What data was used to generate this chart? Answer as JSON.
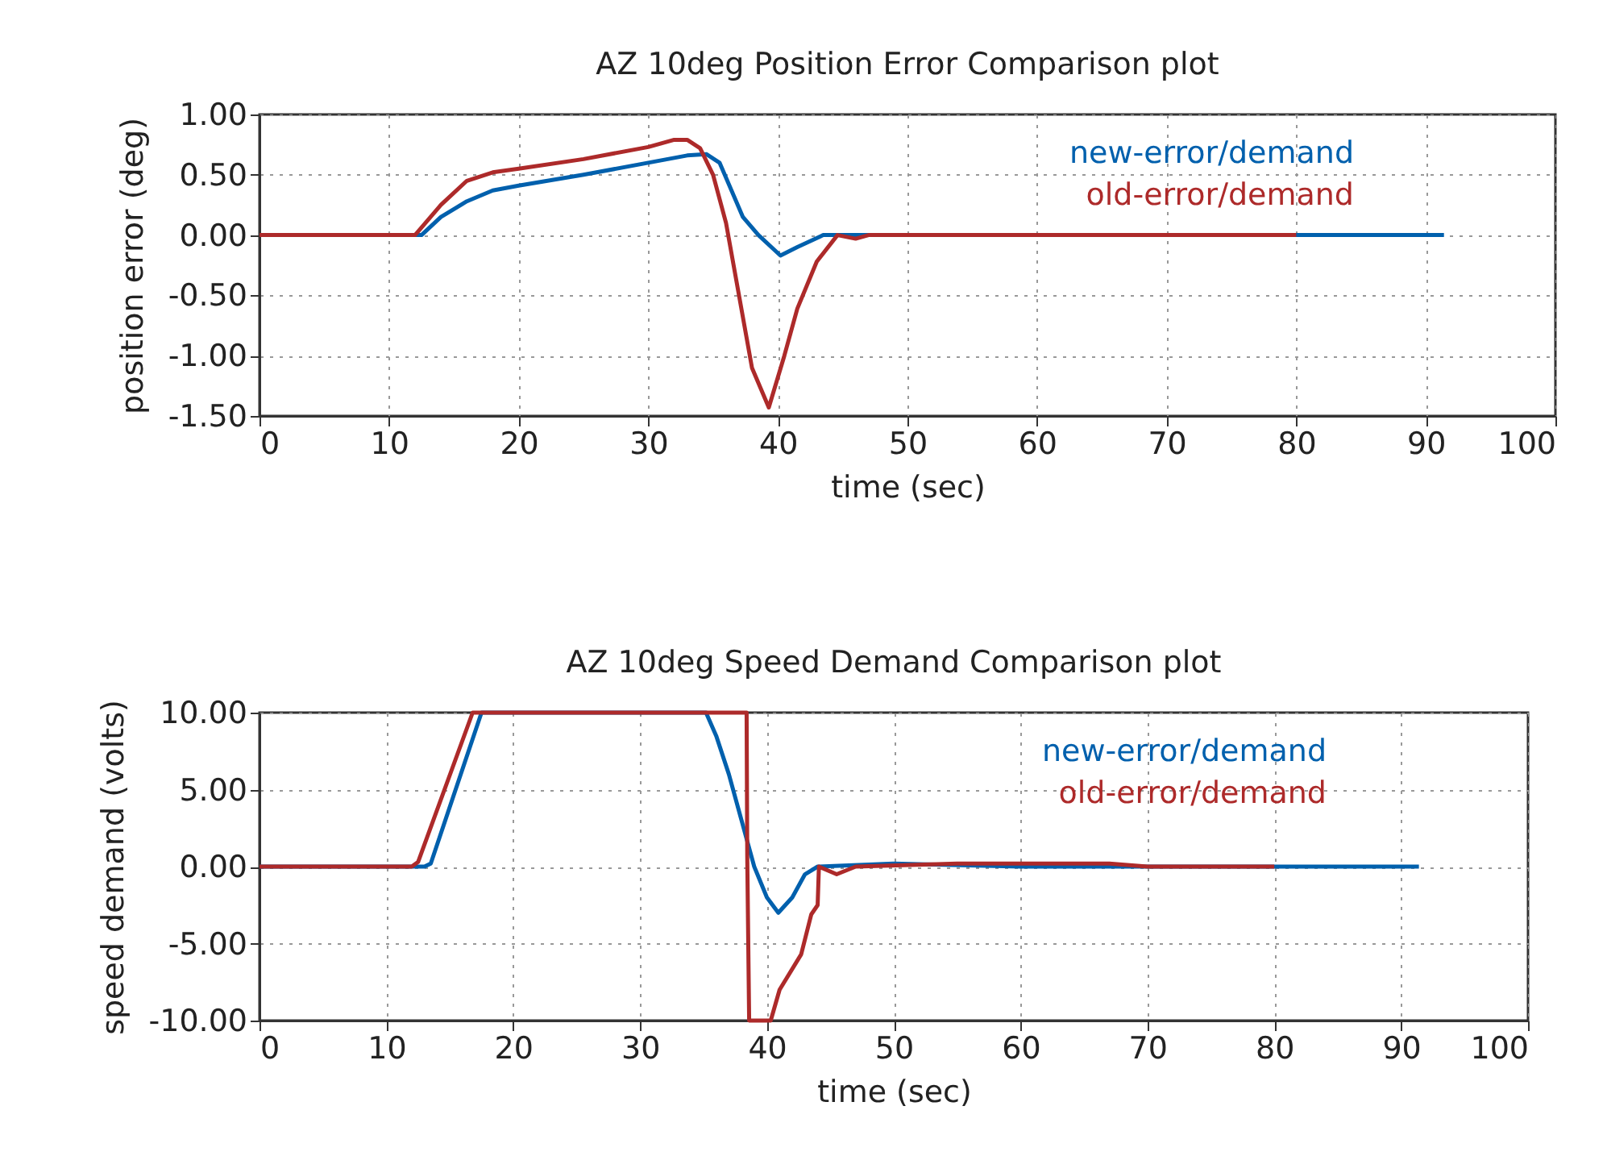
{
  "chart_data": [
    {
      "type": "line",
      "title": "AZ 10deg Position Error Comparison plot",
      "xlabel": "time (sec)",
      "ylabel": "position error (deg)",
      "xlim": [
        0,
        100
      ],
      "xticks": [
        0,
        10,
        20,
        30,
        40,
        50,
        60,
        70,
        80,
        90,
        100
      ],
      "ylim": [
        -1.5,
        1.0
      ],
      "yticks": [
        {
          "value": -1.5,
          "label": "-1.50"
        },
        {
          "value": -1.0,
          "label": "-1.00"
        },
        {
          "value": -0.5,
          "label": "-0.50"
        },
        {
          "value": 0,
          "label": "0.00"
        },
        {
          "value": 0.5,
          "label": "0.50"
        },
        {
          "value": 1.0,
          "label": "1.00"
        }
      ],
      "grid": true,
      "legend": "top right",
      "line_style": "solid",
      "marker": "none",
      "series": [
        {
          "name": "new-error/demand",
          "color": "#0060ad",
          "x": [
            0,
            12.5,
            14,
            16,
            18,
            20,
            25,
            30,
            33,
            34.5,
            35.5,
            37.3,
            38.5,
            40.2,
            41.5,
            43.5,
            50,
            60,
            70,
            80,
            91.4
          ],
          "values": [
            0,
            0,
            0.15,
            0.28,
            0.37,
            0.41,
            0.5,
            0.6,
            0.66,
            0.67,
            0.6,
            0.15,
            0.0,
            -0.17,
            -0.1,
            0.0,
            0.0,
            0.0,
            0.0,
            0.0,
            0.0
          ]
        },
        {
          "name": "old-error/demand",
          "color": "#ad2a2a",
          "x": [
            0,
            12,
            14,
            16,
            18,
            20,
            25,
            30,
            32,
            33,
            34,
            35,
            36,
            37,
            38,
            39.3,
            40.5,
            41.5,
            43,
            44.6,
            46,
            47,
            50,
            60,
            70,
            80
          ],
          "values": [
            0,
            0,
            0.25,
            0.45,
            0.52,
            0.55,
            0.63,
            0.73,
            0.79,
            0.79,
            0.72,
            0.5,
            0.1,
            -0.5,
            -1.1,
            -1.43,
            -1.0,
            -0.61,
            -0.22,
            0.0,
            -0.03,
            0.0,
            0.0,
            0.0,
            0.0,
            0.0
          ]
        }
      ]
    },
    {
      "type": "line",
      "title": "AZ 10deg Speed Demand Comparison plot",
      "xlabel": "time (sec)",
      "ylabel": "speed demand (volts)",
      "xlim": [
        0,
        100
      ],
      "xticks": [
        0,
        10,
        20,
        30,
        40,
        50,
        60,
        70,
        80,
        90,
        100
      ],
      "ylim": [
        -10,
        10
      ],
      "yticks": [
        {
          "value": -10,
          "label": "-10.00"
        },
        {
          "value": -5,
          "label": "-5.00"
        },
        {
          "value": 0,
          "label": "0.00"
        },
        {
          "value": 5,
          "label": "5.00"
        },
        {
          "value": 10,
          "label": "10.00"
        }
      ],
      "grid": true,
      "legend": "top right",
      "line_style": "solid",
      "marker": "none",
      "series": [
        {
          "name": "new-error/demand",
          "color": "#0060ad",
          "x": [
            0,
            13,
            13.5,
            17.5,
            35.2,
            36,
            37,
            38,
            39,
            40,
            40.9,
            42,
            43,
            44,
            50,
            60,
            70,
            80,
            91.4
          ],
          "values": [
            0,
            0,
            0.2,
            10,
            10,
            8.5,
            6,
            3,
            0,
            -2,
            -3.0,
            -2,
            -0.5,
            0,
            0.2,
            0,
            0,
            0,
            0
          ]
        },
        {
          "name": "old-error/demand",
          "color": "#ad2a2a",
          "x": [
            0,
            12,
            12.5,
            16.8,
            38.4,
            38.45,
            38.6,
            40.3,
            41,
            42.7,
            43.5,
            44,
            44.1,
            45.5,
            47,
            55,
            67,
            70,
            80
          ],
          "values": [
            0,
            0,
            0.3,
            10,
            10,
            0.7,
            -10,
            -10,
            -8,
            -5.7,
            -3.1,
            -2.5,
            0,
            -0.5,
            0,
            0.2,
            0.2,
            0,
            0
          ]
        }
      ]
    }
  ]
}
